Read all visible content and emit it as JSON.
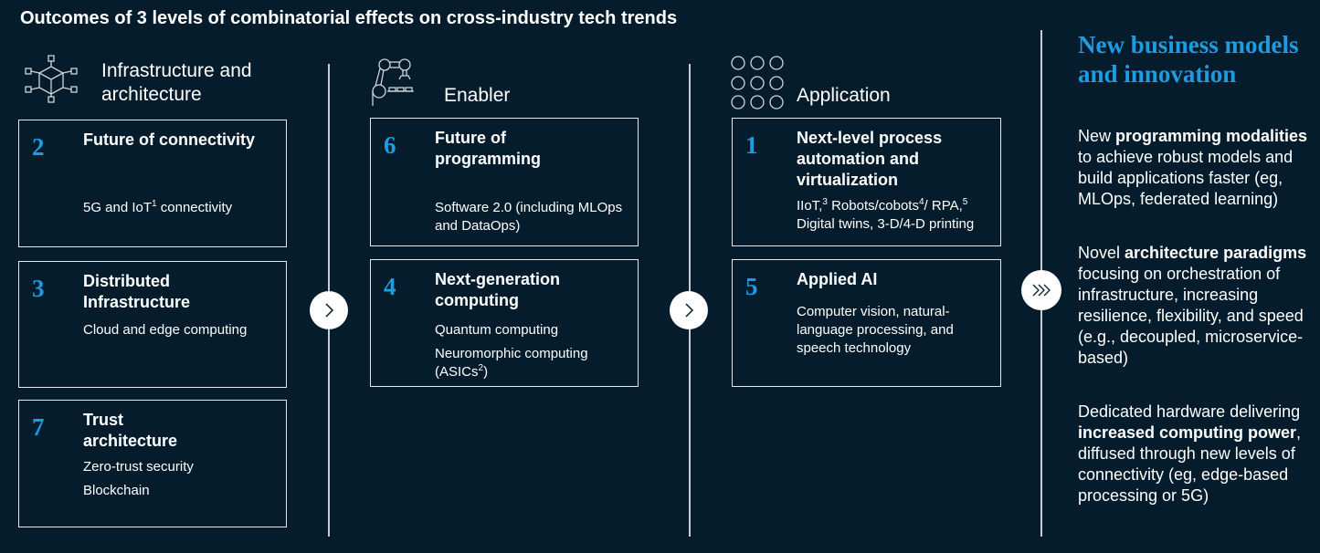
{
  "title": "Outcomes of 3 levels of combinatorial effects on cross-industry tech trends",
  "columns": [
    {
      "header": "Infrastructure and architecture",
      "icon": "network-cube-icon"
    },
    {
      "header": "Enabler",
      "icon": "robot-arm-icon"
    },
    {
      "header": "Application",
      "icon": "circle-grid-icon"
    }
  ],
  "boxes": {
    "b2": {
      "num": "2",
      "title": "Future of connectivity",
      "desc_a": "5G and IoT",
      "desc_sup": "1",
      "desc_b": " connectivity"
    },
    "b3": {
      "num": "3",
      "title": "Distributed Infrastructure",
      "desc": "Cloud and edge computing"
    },
    "b7": {
      "num": "7",
      "title": "Trust architecture",
      "desc1": "Zero-trust security",
      "desc2": "Blockchain"
    },
    "b6": {
      "num": "6",
      "title": "Future of programming",
      "desc": "Software 2.0 (including MLOps and DataOps)"
    },
    "b4": {
      "num": "4",
      "title": "Next-generation computing",
      "desc1": "Quantum computing",
      "desc2_a": "Neuromorphic computing (ASICs",
      "desc2_sup": "2",
      "desc2_b": ")"
    },
    "b1": {
      "num": "1",
      "title": "Next-level process automation and virtualization",
      "d_a": "IIoT,",
      "d_s1": "3",
      "d_b": " Robots/cobots",
      "d_s2": "4",
      "d_c": "/ RPA,",
      "d_s3": "5",
      "d_d": " Digital twins, 3-D/4-D printing"
    },
    "b5": {
      "num": "5",
      "title": "Applied AI",
      "desc": "Computer vision, natural-language processing, and speech technology"
    }
  },
  "arrows": [
    "chevron-right-icon",
    "chevron-right-icon",
    "triple-chevron-right-icon"
  ],
  "outcome": {
    "heading": "New business models and innovation",
    "p1": [
      {
        "t": "New ",
        "b": false
      },
      {
        "t": "programming modalities",
        "b": true
      },
      {
        "t": " to achieve robust models and build applications faster (eg, MLOps, federated learning)",
        "b": false
      }
    ],
    "p2": [
      {
        "t": "Novel ",
        "b": false
      },
      {
        "t": "architecture paradigms",
        "b": true
      },
      {
        "t": " focusing on orchestration of infrastructure, increasing resilience, flexibility, and speed (e.g., decoupled, microservice-based)",
        "b": false
      }
    ],
    "p3": [
      {
        "t": "Dedicated hardware delivering ",
        "b": false
      },
      {
        "t": "increased computing power",
        "b": true
      },
      {
        "t": ", diffused through new levels of connectivity (eg, edge-based processing or 5G)",
        "b": false
      }
    ]
  },
  "colors": {
    "background": "#051c2c",
    "accent": "#1f9be0"
  }
}
